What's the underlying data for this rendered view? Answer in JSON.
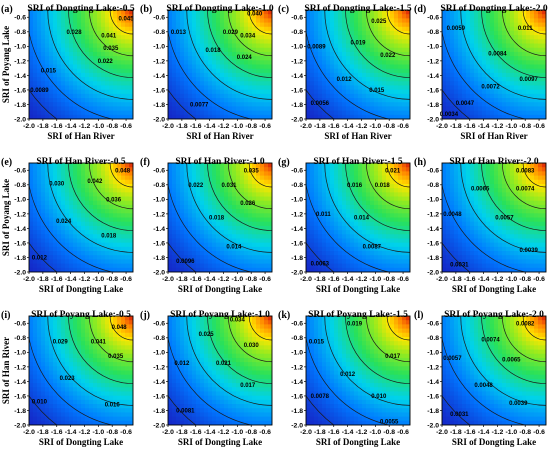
{
  "chart_data": [
    {
      "type": "heatmap",
      "letter": "(a)",
      "title": "SRI of Dongting Lake:-0.5",
      "xlabel": "SRI of Han River",
      "ylabel": "SRI of Poyang Lake",
      "xlim": [
        -2.0,
        -0.5
      ],
      "ylim": [
        -2.0,
        -0.5
      ],
      "x_ticks": [
        "-2.0",
        "-1.8",
        "-1.6",
        "-1.4",
        "-1.2",
        "-1.0",
        "-0.8",
        "-0.6"
      ],
      "y_ticks": [
        "-0.6",
        "-0.8",
        "-1.0",
        "-1.2",
        "-1.4",
        "-1.6",
        "-1.8",
        "-2.0"
      ],
      "vmax": 0.045,
      "contour_labels": [
        {
          "text": "0.045",
          "x": -0.6,
          "y": -0.62
        },
        {
          "text": "0.041",
          "x": -0.85,
          "y": -0.85
        },
        {
          "text": "0.035",
          "x": -0.82,
          "y": -1.02
        },
        {
          "text": "0.028",
          "x": -1.35,
          "y": -0.8
        },
        {
          "text": "0.022",
          "x": -0.9,
          "y": -1.2
        },
        {
          "text": "0.015",
          "x": -1.72,
          "y": -1.33
        },
        {
          "text": "0.0089",
          "x": -1.85,
          "y": -1.6
        }
      ]
    },
    {
      "type": "heatmap",
      "letter": "(b)",
      "title": "SRI of Dongting Lake:-1.0",
      "xlabel": "SRI of Han River",
      "ylabel": "",
      "xlim": [
        -2.0,
        -0.5
      ],
      "ylim": [
        -2.0,
        -0.5
      ],
      "x_ticks": [
        "-2.0",
        "-1.8",
        "-1.6",
        "-1.4",
        "-1.2",
        "-1.0",
        "-0.8",
        "-0.6"
      ],
      "y_ticks": [
        "-0.6",
        "-0.8",
        "-1.0",
        "-1.2",
        "-1.4",
        "-1.6",
        "-1.8",
        "-2.0"
      ],
      "vmax": 0.04,
      "contour_labels": [
        {
          "text": "0.040",
          "x": -0.75,
          "y": -0.55
        },
        {
          "text": "0.034",
          "x": -0.85,
          "y": -0.85
        },
        {
          "text": "0.029",
          "x": -1.1,
          "y": -0.8
        },
        {
          "text": "0.024",
          "x": -0.9,
          "y": -1.15
        },
        {
          "text": "0.018",
          "x": -1.35,
          "y": -1.05
        },
        {
          "text": "0.013",
          "x": -1.85,
          "y": -0.8
        },
        {
          "text": "0.0077",
          "x": -1.55,
          "y": -1.8
        }
      ]
    },
    {
      "type": "heatmap",
      "letter": "(c)",
      "title": "SRI of Dongting Lake:-1.5",
      "xlabel": "SRI of Han River",
      "ylabel": "",
      "xlim": [
        -2.0,
        -0.5
      ],
      "ylim": [
        -2.0,
        -0.5
      ],
      "x_ticks": [
        "-2.0",
        "-1.8",
        "-1.6",
        "-1.4",
        "-1.2",
        "-1.0",
        "-0.8",
        "-0.6"
      ],
      "y_ticks": [
        "-0.6",
        "-0.8",
        "-1.0",
        "-1.2",
        "-1.4",
        "-1.6",
        "-1.8",
        "-2.0"
      ],
      "vmax": 0.03,
      "contour_labels": [
        {
          "text": "0.025",
          "x": -0.95,
          "y": -0.65
        },
        {
          "text": "0.019",
          "x": -1.25,
          "y": -0.95
        },
        {
          "text": "0.022",
          "x": -0.82,
          "y": -1.12
        },
        {
          "text": "0.0089",
          "x": -1.85,
          "y": -1.0
        },
        {
          "text": "0.012",
          "x": -1.45,
          "y": -1.45
        },
        {
          "text": "0.015",
          "x": -0.98,
          "y": -1.6
        },
        {
          "text": "0.0056",
          "x": -1.8,
          "y": -1.78
        }
      ]
    },
    {
      "type": "heatmap",
      "letter": "(d)",
      "title": "SRI of Dongting Lake:-2.0",
      "xlabel": "SRI of Han River",
      "ylabel": "",
      "xlim": [
        -2.0,
        -0.5
      ],
      "ylim": [
        -2.0,
        -0.5
      ],
      "x_ticks": [
        "-2.0",
        "-1.8",
        "-1.6",
        "-1.4",
        "-1.2",
        "-1.0",
        "-0.8",
        "-0.6"
      ],
      "y_ticks": [
        "-0.6",
        "-0.8",
        "-1.0",
        "-1.2",
        "-1.4",
        "-1.6",
        "-1.8",
        "-2.0"
      ],
      "vmax": 0.014,
      "contour_labels": [
        {
          "text": "0.0059",
          "x": -1.8,
          "y": -0.75
        },
        {
          "text": "0.011",
          "x": -0.8,
          "y": -0.75
        },
        {
          "text": "0.0084",
          "x": -1.2,
          "y": -1.1
        },
        {
          "text": "0.0072",
          "x": -1.3,
          "y": -1.55
        },
        {
          "text": "0.0097",
          "x": -0.75,
          "y": -1.45
        },
        {
          "text": "0.0047",
          "x": -1.67,
          "y": -1.78
        },
        {
          "text": "0.0034",
          "x": -1.9,
          "y": -1.93
        }
      ]
    },
    {
      "type": "heatmap",
      "letter": "(e)",
      "title": "SRI of Han River:-0.5",
      "xlabel": "SRI of Dongting Lake",
      "ylabel": "SRI of Poyang Lake",
      "xlim": [
        -2.0,
        -0.5
      ],
      "ylim": [
        -2.0,
        -0.5
      ],
      "x_ticks": [
        "-2.0",
        "-1.8",
        "-1.6",
        "-1.4",
        "-1.2",
        "-1.0",
        "-0.8",
        "-0.6"
      ],
      "y_ticks": [
        "-0.6",
        "-0.8",
        "-1.0",
        "-1.2",
        "-1.4",
        "-1.6",
        "-1.8",
        "-2.0"
      ],
      "vmax": 0.05,
      "contour_labels": [
        {
          "text": "0.048",
          "x": -0.65,
          "y": -0.6
        },
        {
          "text": "0.042",
          "x": -1.05,
          "y": -0.75
        },
        {
          "text": "0.036",
          "x": -0.78,
          "y": -1.0
        },
        {
          "text": "0.030",
          "x": -1.6,
          "y": -0.78
        },
        {
          "text": "0.024",
          "x": -1.5,
          "y": -1.3
        },
        {
          "text": "0.018",
          "x": -0.85,
          "y": -1.5
        },
        {
          "text": "0.012",
          "x": -1.85,
          "y": -1.8
        }
      ]
    },
    {
      "type": "heatmap",
      "letter": "(f)",
      "title": "SRI of Han River:-1.0",
      "xlabel": "SRI of Dongting Lake",
      "ylabel": "",
      "xlim": [
        -2.0,
        -0.5
      ],
      "ylim": [
        -2.0,
        -0.5
      ],
      "x_ticks": [
        "-2.0",
        "-1.8",
        "-1.6",
        "-1.4",
        "-1.2",
        "-1.0",
        "-0.8",
        "-0.6"
      ],
      "y_ticks": [
        "-0.6",
        "-0.8",
        "-1.0",
        "-1.2",
        "-1.4",
        "-1.6",
        "-1.8",
        "-2.0"
      ],
      "vmax": 0.04,
      "contour_labels": [
        {
          "text": "0.035",
          "x": -0.8,
          "y": -0.6
        },
        {
          "text": "0.031",
          "x": -1.12,
          "y": -0.8
        },
        {
          "text": "0.022",
          "x": -1.6,
          "y": -0.8
        },
        {
          "text": "0.026",
          "x": -0.85,
          "y": -1.05
        },
        {
          "text": "0.018",
          "x": -1.3,
          "y": -1.25
        },
        {
          "text": "0.014",
          "x": -1.05,
          "y": -1.65
        },
        {
          "text": "0.0096",
          "x": -1.75,
          "y": -1.85
        }
      ]
    },
    {
      "type": "heatmap",
      "letter": "(g)",
      "title": "SRI of Han River:-1.5",
      "xlabel": "SRI of Dongting Lake",
      "ylabel": "",
      "xlim": [
        -2.0,
        -0.5
      ],
      "ylim": [
        -2.0,
        -0.5
      ],
      "x_ticks": [
        "-2.0",
        "-1.8",
        "-1.6",
        "-1.4",
        "-1.2",
        "-1.0",
        "-0.8",
        "-0.6"
      ],
      "y_ticks": [
        "-0.6",
        "-0.8",
        "-1.0",
        "-1.2",
        "-1.4",
        "-1.6",
        "-1.8",
        "-2.0"
      ],
      "vmax": 0.025,
      "contour_labels": [
        {
          "text": "0.021",
          "x": -0.75,
          "y": -0.6
        },
        {
          "text": "0.016",
          "x": -1.3,
          "y": -0.8
        },
        {
          "text": "0.018",
          "x": -0.9,
          "y": -0.8
        },
        {
          "text": "0.011",
          "x": -1.75,
          "y": -1.2
        },
        {
          "text": "0.014",
          "x": -1.2,
          "y": -1.25
        },
        {
          "text": "0.0087",
          "x": -1.05,
          "y": -1.65
        },
        {
          "text": "0.0063",
          "x": -1.8,
          "y": -1.88
        }
      ]
    },
    {
      "type": "heatmap",
      "letter": "(h)",
      "title": "SRI of Han River:-2.0",
      "xlabel": "SRI of Dongting Lake",
      "ylabel": "",
      "xlim": [
        -2.0,
        -0.5
      ],
      "ylim": [
        -2.0,
        -0.5
      ],
      "x_ticks": [
        "-2.0",
        "-1.8",
        "-1.6",
        "-1.4",
        "-1.2",
        "-1.0",
        "-0.8",
        "-0.6"
      ],
      "y_ticks": [
        "-0.6",
        "-0.8",
        "-1.0",
        "-1.2",
        "-1.4",
        "-1.6",
        "-1.8",
        "-2.0"
      ],
      "vmax": 0.0095,
      "contour_labels": [
        {
          "text": "0.0083",
          "x": -0.8,
          "y": -0.6
        },
        {
          "text": "0.0065",
          "x": -1.45,
          "y": -0.85
        },
        {
          "text": "0.0074",
          "x": -0.8,
          "y": -0.85
        },
        {
          "text": "0.0048",
          "x": -1.85,
          "y": -1.2
        },
        {
          "text": "0.0057",
          "x": -1.1,
          "y": -1.25
        },
        {
          "text": "0.0039",
          "x": -0.75,
          "y": -1.7
        },
        {
          "text": "0.0031",
          "x": -1.75,
          "y": -1.9
        }
      ]
    },
    {
      "type": "heatmap",
      "letter": "(i)",
      "title": "SRI of Poyang Lake:-0.5",
      "xlabel": "SRI of Dongting Lake",
      "ylabel": "SRI of Han River",
      "xlim": [
        -2.0,
        -0.5
      ],
      "ylim": [
        -2.0,
        -0.5
      ],
      "x_ticks": [
        "-2.0",
        "-1.8",
        "-1.6",
        "-1.4",
        "-1.2",
        "-1.0",
        "-0.8",
        "-0.6"
      ],
      "y_ticks": [
        "-0.6",
        "-0.8",
        "-1.0",
        "-1.2",
        "-1.4",
        "-1.6",
        "-1.8",
        "-2.0"
      ],
      "vmax": 0.052,
      "contour_labels": [
        {
          "text": "0.048",
          "x": -0.7,
          "y": -0.65
        },
        {
          "text": "0.041",
          "x": -1.0,
          "y": -0.85
        },
        {
          "text": "0.035",
          "x": -0.75,
          "y": -1.05
        },
        {
          "text": "0.029",
          "x": -1.55,
          "y": -0.85
        },
        {
          "text": "0.023",
          "x": -1.45,
          "y": -1.35
        },
        {
          "text": "0.016",
          "x": -0.8,
          "y": -1.72
        },
        {
          "text": "0.010",
          "x": -1.85,
          "y": -1.68
        }
      ]
    },
    {
      "type": "heatmap",
      "letter": "(j)",
      "title": "SRI of Poyang Lake:-1.0",
      "xlabel": "SRI of Dongting Lake",
      "ylabel": "",
      "xlim": [
        -2.0,
        -0.5
      ],
      "ylim": [
        -2.0,
        -0.5
      ],
      "x_ticks": [
        "-2.0",
        "-1.8",
        "-1.6",
        "-1.4",
        "-1.2",
        "-1.0",
        "-0.8",
        "-0.6"
      ],
      "y_ticks": [
        "-0.6",
        "-0.8",
        "-1.0",
        "-1.2",
        "-1.4",
        "-1.6",
        "-1.8",
        "-2.0"
      ],
      "vmax": 0.038,
      "contour_labels": [
        {
          "text": "0.034",
          "x": -1.0,
          "y": -0.55
        },
        {
          "text": "0.025",
          "x": -1.45,
          "y": -0.75
        },
        {
          "text": "0.030",
          "x": -0.8,
          "y": -0.9
        },
        {
          "text": "0.012",
          "x": -1.8,
          "y": -1.15
        },
        {
          "text": "0.021",
          "x": -1.2,
          "y": -1.15
        },
        {
          "text": "0.017",
          "x": -0.85,
          "y": -1.45
        },
        {
          "text": "0.0081",
          "x": -1.75,
          "y": -1.8
        }
      ]
    },
    {
      "type": "heatmap",
      "letter": "(k)",
      "title": "SRI of Poyang Lake:-1.5",
      "xlabel": "SRI of Dongting Lake",
      "ylabel": "",
      "xlim": [
        -2.0,
        -0.5
      ],
      "ylim": [
        -2.0,
        -0.5
      ],
      "x_ticks": [
        "-2.0",
        "-1.8",
        "-1.6",
        "-1.4",
        "-1.2",
        "-1.0",
        "-0.8",
        "-0.6"
      ],
      "y_ticks": [
        "-0.6",
        "-0.8",
        "-1.0",
        "-1.2",
        "-1.4",
        "-1.6",
        "-1.8",
        "-2.0"
      ],
      "vmax": 0.022,
      "contour_labels": [
        {
          "text": "0.019",
          "x": -1.3,
          "y": -0.6
        },
        {
          "text": "0.015",
          "x": -1.85,
          "y": -0.85
        },
        {
          "text": "0.017",
          "x": -0.75,
          "y": -1.05
        },
        {
          "text": "0.012",
          "x": -1.4,
          "y": -1.3
        },
        {
          "text": "0.010",
          "x": -0.95,
          "y": -1.6
        },
        {
          "text": "0.0078",
          "x": -1.8,
          "y": -1.6
        },
        {
          "text": "0.0055",
          "x": -0.8,
          "y": -1.95
        }
      ]
    },
    {
      "type": "heatmap",
      "letter": "(l)",
      "title": "SRI of Poyang Lake:-2.0",
      "xlabel": "SRI of Dongting Lake",
      "ylabel": "",
      "xlim": [
        -2.0,
        -0.5
      ],
      "ylim": [
        -2.0,
        -0.5
      ],
      "x_ticks": [
        "-2.0",
        "-1.8",
        "-1.6",
        "-1.4",
        "-1.2",
        "-1.0",
        "-0.8",
        "-0.6"
      ],
      "y_ticks": [
        "-0.6",
        "-0.8",
        "-1.0",
        "-1.2",
        "-1.4",
        "-1.6",
        "-1.8",
        "-2.0"
      ],
      "vmax": 0.0092,
      "contour_labels": [
        {
          "text": "0.0082",
          "x": -0.8,
          "y": -0.6
        },
        {
          "text": "0.0074",
          "x": -1.3,
          "y": -0.82
        },
        {
          "text": "0.0057",
          "x": -1.85,
          "y": -1.08
        },
        {
          "text": "0.0065",
          "x": -1.0,
          "y": -1.1
        },
        {
          "text": "0.0048",
          "x": -1.4,
          "y": -1.45
        },
        {
          "text": "0.0039",
          "x": -0.9,
          "y": -1.7
        },
        {
          "text": "0.0031",
          "x": -1.75,
          "y": -1.85
        }
      ]
    }
  ]
}
